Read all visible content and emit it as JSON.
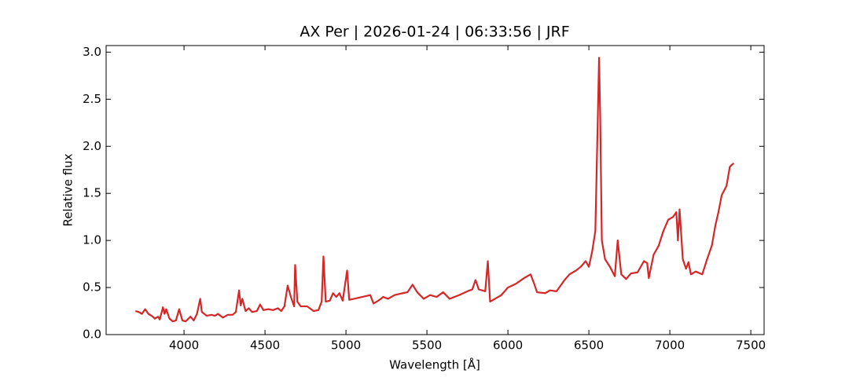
{
  "chart_data": {
    "type": "line",
    "title": "AX Per | 2026-01-24 | 06:33:56 | JRF",
    "x_label": "Wavelength [Å]",
    "y_label": "Relative flux",
    "xlim": [
      3519,
      7582
    ],
    "ylim": [
      0,
      3.07
    ],
    "xticks": [
      4000,
      4500,
      5000,
      5500,
      6000,
      6500,
      7000,
      7500
    ],
    "yticks": [
      {
        "value": 0,
        "label": "0.0"
      },
      0.5,
      {
        "value": 1,
        "label": "1.0"
      },
      1.5,
      {
        "value": 2,
        "label": "2.0"
      },
      2.5,
      {
        "value": 3,
        "label": "3.0"
      }
    ],
    "series": [
      {
        "color": "#d62728",
        "x": [
          3700,
          3720,
          3740,
          3760,
          3780,
          3800,
          3820,
          3840,
          3850,
          3870,
          3880,
          3890,
          3910,
          3930,
          3950,
          3970,
          3990,
          4010,
          4040,
          4060,
          4080,
          4100,
          4110,
          4140,
          4170,
          4190,
          4210,
          4240,
          4270,
          4300,
          4320,
          4340,
          4350,
          4360,
          4380,
          4400,
          4420,
          4450,
          4470,
          4490,
          4520,
          4550,
          4580,
          4600,
          4620,
          4640,
          4660,
          4680,
          4686,
          4700,
          4720,
          4760,
          4800,
          4830,
          4850,
          4861,
          4875,
          4900,
          4920,
          4940,
          4960,
          4980,
          5007,
          5020,
          5050,
          5100,
          5150,
          5170,
          5200,
          5230,
          5260,
          5300,
          5350,
          5380,
          5411,
          5440,
          5480,
          5520,
          5560,
          5600,
          5640,
          5700,
          5750,
          5780,
          5800,
          5820,
          5860,
          5876,
          5890,
          5920,
          5960,
          6000,
          6050,
          6100,
          6140,
          6160,
          6180,
          6230,
          6260,
          6300,
          6350,
          6380,
          6420,
          6450,
          6480,
          6500,
          6520,
          6540,
          6555,
          6563,
          6570,
          6580,
          6600,
          6630,
          6660,
          6678,
          6700,
          6730,
          6760,
          6800,
          6840,
          6860,
          6870,
          6900,
          6930,
          6960,
          6990,
          7020,
          7040,
          7050,
          7060,
          7080,
          7100,
          7115,
          7130,
          7160,
          7200,
          7230,
          7260,
          7280,
          7300,
          7320,
          7350,
          7370,
          7380,
          7395
        ],
        "values": [
          0.25,
          0.24,
          0.22,
          0.27,
          0.22,
          0.2,
          0.17,
          0.19,
          0.16,
          0.29,
          0.22,
          0.27,
          0.17,
          0.14,
          0.15,
          0.27,
          0.15,
          0.14,
          0.19,
          0.15,
          0.22,
          0.38,
          0.24,
          0.2,
          0.21,
          0.2,
          0.22,
          0.18,
          0.21,
          0.21,
          0.24,
          0.47,
          0.31,
          0.38,
          0.25,
          0.28,
          0.24,
          0.25,
          0.32,
          0.26,
          0.27,
          0.26,
          0.28,
          0.25,
          0.3,
          0.52,
          0.4,
          0.3,
          0.74,
          0.35,
          0.3,
          0.3,
          0.25,
          0.26,
          0.35,
          0.83,
          0.35,
          0.36,
          0.44,
          0.4,
          0.44,
          0.36,
          0.68,
          0.37,
          0.38,
          0.4,
          0.42,
          0.33,
          0.36,
          0.4,
          0.38,
          0.42,
          0.44,
          0.45,
          0.53,
          0.45,
          0.38,
          0.42,
          0.4,
          0.45,
          0.38,
          0.42,
          0.46,
          0.48,
          0.58,
          0.48,
          0.46,
          0.78,
          0.35,
          0.38,
          0.42,
          0.5,
          0.54,
          0.6,
          0.64,
          0.55,
          0.45,
          0.44,
          0.47,
          0.46,
          0.58,
          0.64,
          0.68,
          0.72,
          0.78,
          0.72,
          0.88,
          1.1,
          2.3,
          2.94,
          2.3,
          1.0,
          0.8,
          0.72,
          0.62,
          1.0,
          0.64,
          0.59,
          0.65,
          0.66,
          0.78,
          0.76,
          0.6,
          0.85,
          0.94,
          1.1,
          1.22,
          1.25,
          1.3,
          1.0,
          1.33,
          0.8,
          0.7,
          0.77,
          0.64,
          0.67,
          0.64,
          0.8,
          0.95,
          1.15,
          1.3,
          1.48,
          1.58,
          1.78,
          1.8,
          1.82
        ]
      }
    ]
  }
}
